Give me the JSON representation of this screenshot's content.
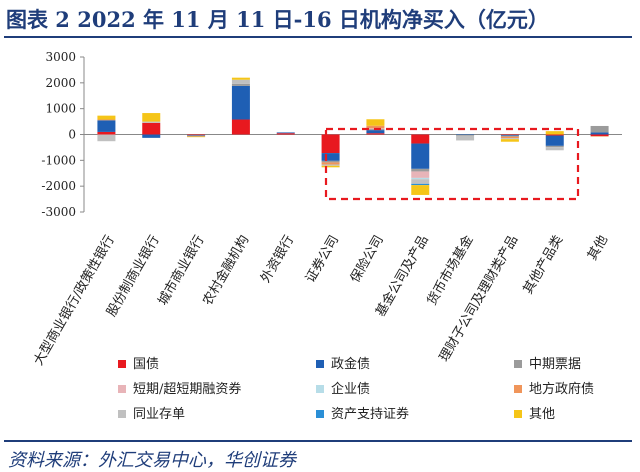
{
  "title": "图表 2  2022 年 11 月 11 日-16 日机构净买入（亿元）",
  "source": "资料来源：外汇交易中心，华创证券",
  "chart_data": {
    "type": "bar",
    "stacked": true,
    "title": "图表 2  2022 年 11 月 11 日-16 日机构净买入（亿元）",
    "xlabel": "",
    "ylabel": "",
    "ylim": [
      -3000,
      3000
    ],
    "yticks": [
      "3000",
      "2000",
      "1000",
      "0",
      "-1000",
      "-2000",
      "-3000"
    ],
    "grid": false,
    "legend_position": "bottom",
    "categories": [
      "大型商业银行/政策性银行",
      "股份制商业银行",
      "城市商业银行",
      "农村金融机构",
      "外资银行",
      "证券公司",
      "保险公司",
      "基金公司及产品",
      "货币市场基金",
      "理财子公司及理财类产品",
      "其他产品类",
      "其他"
    ],
    "series": [
      {
        "name": "国债",
        "color": "#e8191f",
        "values": [
          100,
          450,
          -30,
          580,
          50,
          -720,
          50,
          -350,
          0,
          -20,
          -40,
          -60
        ]
      },
      {
        "name": "政金债",
        "color": "#1f5fb4",
        "values": [
          450,
          -130,
          -20,
          1300,
          30,
          -300,
          120,
          -980,
          -20,
          -30,
          -400,
          80
        ]
      },
      {
        "name": "中期票据",
        "color": "#9b9b9b",
        "values": [
          0,
          0,
          -20,
          80,
          0,
          -60,
          40,
          -100,
          -30,
          -30,
          -50,
          250
        ]
      },
      {
        "name": "短期/超短期融资券",
        "color": "#e8b4b8",
        "values": [
          0,
          0,
          0,
          0,
          0,
          0,
          30,
          -250,
          0,
          0,
          0,
          0
        ]
      },
      {
        "name": "企业债",
        "color": "#b7dde8",
        "values": [
          0,
          0,
          0,
          0,
          0,
          0,
          0,
          -50,
          0,
          0,
          0,
          0
        ]
      },
      {
        "name": "地方政府债",
        "color": "#f0955a",
        "values": [
          30,
          0,
          -10,
          0,
          0,
          -80,
          100,
          0,
          0,
          -60,
          0,
          -20
        ]
      },
      {
        "name": "同业存单",
        "color": "#c0c0c0",
        "values": [
          -260,
          50,
          0,
          160,
          0,
          -50,
          0,
          -180,
          -180,
          -40,
          -120,
          0
        ]
      },
      {
        "name": "资产支持证券",
        "color": "#2a8fd6",
        "values": [
          0,
          0,
          0,
          0,
          0,
          0,
          0,
          -50,
          0,
          0,
          0,
          0
        ]
      },
      {
        "name": "其他",
        "color": "#f5c518",
        "values": [
          150,
          330,
          -20,
          80,
          0,
          -60,
          250,
          -380,
          0,
          -100,
          130,
          0
        ]
      }
    ],
    "annotations": [
      "dashed red box highlighting 证券公司 through 其他产品类"
    ]
  }
}
